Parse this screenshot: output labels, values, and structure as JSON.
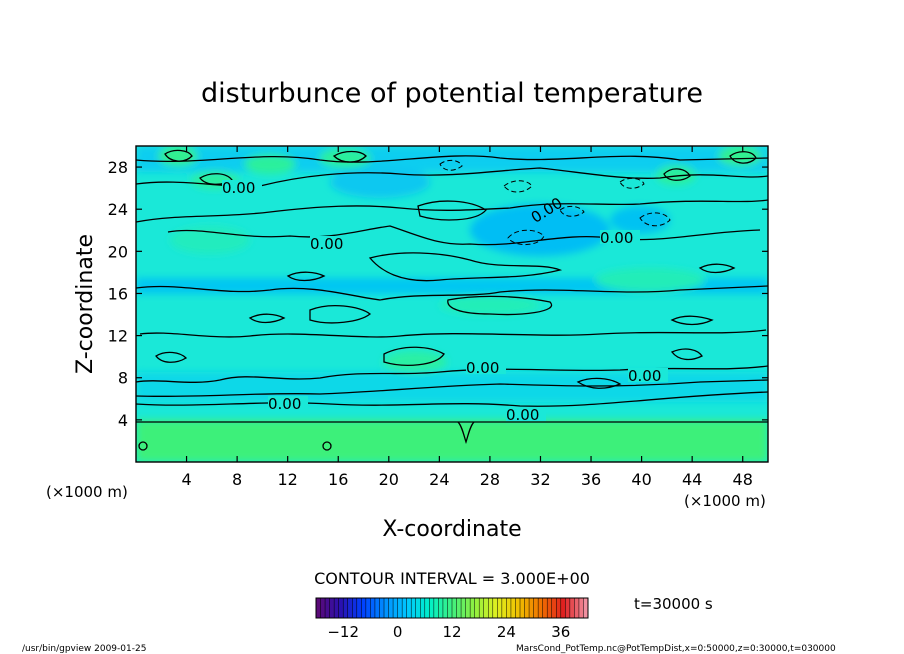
{
  "chart_data": {
    "type": "heatmap",
    "title": "disturbunce of potential temperature",
    "xlabel": "X-coordinate",
    "ylabel": "Z-coordinate",
    "x_unit_left": "(×1000 m)",
    "x_unit_right": "(×1000 m)",
    "xlim": [
      0,
      50
    ],
    "ylim": [
      0,
      30
    ],
    "x_ticks": [
      "4",
      "8",
      "12",
      "16",
      "20",
      "24",
      "28",
      "32",
      "36",
      "40",
      "44",
      "48"
    ],
    "y_ticks": [
      "4",
      "8",
      "12",
      "16",
      "20",
      "24",
      "28"
    ],
    "contour_interval_text": "CONTOUR INTERVAL = 3.000E+00",
    "contour_labels": [
      "0.00",
      "0.00",
      "0.00",
      "0.00",
      "0.00",
      "0.00",
      "0.00",
      "0.00"
    ],
    "colorbar": {
      "min": -18,
      "max": 42,
      "tick_labels": [
        "-12",
        "0",
        "12",
        "24",
        "36"
      ],
      "colors": [
        "#5a0a78",
        "#2a10b0",
        "#0040ff",
        "#0090ff",
        "#00c8ff",
        "#00f0c8",
        "#40f080",
        "#90f040",
        "#e0f020",
        "#f0c000",
        "#f07000",
        "#e02020",
        "#f090a0"
      ]
    },
    "time_label": "t=30000 s",
    "field_colors": {
      "cold": "#00c8f4",
      "neutral": "#10eecf",
      "warm": "#30f08a",
      "surface": "#3cf07a"
    }
  },
  "footer": {
    "left": "/usr/bin/gpview  2009-01-25",
    "right": "MarsCond_PotTemp.nc@PotTempDist,x=0:50000,z=0:30000,t=030000"
  }
}
